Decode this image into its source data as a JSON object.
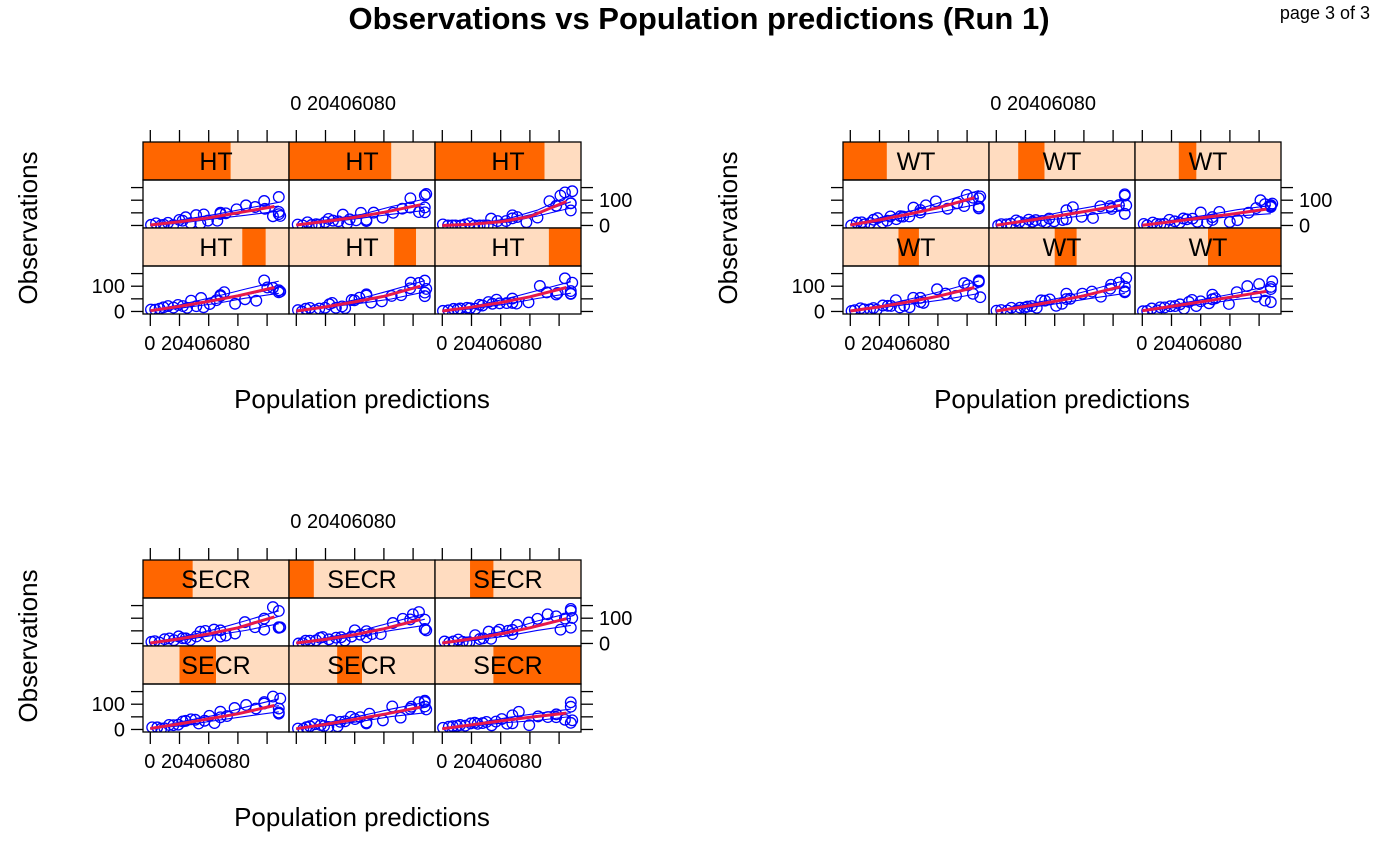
{
  "title": "Observations vs Population predictions (Run 1)",
  "page_note": "page 3 of 3",
  "colors": {
    "strip_bg": "#FFDCC0",
    "strip_shade": "#FF6600",
    "points": "#0000FF",
    "smooth": "#E6194B",
    "frame": "#000000"
  },
  "chart_data": [
    {
      "type": "scatter",
      "variable": "HT",
      "xlabel": "Population predictions",
      "ylabel": "Observations",
      "x_ticks": [
        "0",
        "20",
        "40",
        "60",
        "80"
      ],
      "x_tick_text": "0 20406080",
      "y_ticks": [
        "0",
        "100"
      ],
      "xlim": [
        -5,
        95
      ],
      "ylim": [
        -10,
        180
      ],
      "layout": {
        "columns": 3,
        "rows": 2
      },
      "panels": [
        {
          "label": "HT",
          "shade_range": [
            0.0,
            0.6
          ],
          "smooth": [
            [
              0,
              2
            ],
            [
              20,
              15
            ],
            [
              40,
              30
            ],
            [
              60,
              50
            ],
            [
              85,
              75
            ]
          ]
        },
        {
          "label": "HT",
          "shade_range": [
            0.0,
            0.7
          ],
          "smooth": [
            [
              0,
              2
            ],
            [
              20,
              16
            ],
            [
              40,
              32
            ],
            [
              60,
              52
            ],
            [
              85,
              82
            ]
          ]
        },
        {
          "label": "HT",
          "shade_range": [
            0.0,
            0.75
          ],
          "smooth": [
            [
              0,
              0
            ],
            [
              20,
              5
            ],
            [
              40,
              15
            ],
            [
              60,
              35
            ],
            [
              85,
              95
            ]
          ]
        },
        {
          "label": "HT",
          "shade_range": [
            0.68,
            0.84
          ],
          "smooth": [
            [
              0,
              3
            ],
            [
              20,
              20
            ],
            [
              40,
              40
            ],
            [
              60,
              62
            ],
            [
              85,
              95
            ]
          ]
        },
        {
          "label": "HT",
          "shade_range": [
            0.72,
            0.87
          ],
          "smooth": [
            [
              0,
              2
            ],
            [
              20,
              18
            ],
            [
              40,
              38
            ],
            [
              60,
              60
            ],
            [
              85,
              100
            ]
          ]
        },
        {
          "label": "HT",
          "shade_range": [
            0.78,
            1.0
          ],
          "smooth": [
            [
              0,
              2
            ],
            [
              20,
              17
            ],
            [
              40,
              35
            ],
            [
              60,
              58
            ],
            [
              85,
              95
            ]
          ]
        }
      ]
    },
    {
      "type": "scatter",
      "variable": "WT",
      "xlabel": "Population predictions",
      "ylabel": "Observations",
      "x_ticks": [
        "0",
        "20",
        "40",
        "60",
        "80"
      ],
      "x_tick_text": "0 20406080",
      "y_ticks": [
        "0",
        "100"
      ],
      "xlim": [
        -5,
        95
      ],
      "ylim": [
        -10,
        180
      ],
      "layout": {
        "columns": 3,
        "rows": 2
      },
      "panels": [
        {
          "label": "WT",
          "shade_range": [
            0.0,
            0.3
          ],
          "smooth": [
            [
              0,
              2
            ],
            [
              20,
              22
            ],
            [
              40,
              45
            ],
            [
              60,
              70
            ],
            [
              85,
              110
            ]
          ]
        },
        {
          "label": "WT",
          "shade_range": [
            0.2,
            0.38
          ],
          "smooth": [
            [
              0,
              1
            ],
            [
              20,
              18
            ],
            [
              40,
              36
            ],
            [
              60,
              55
            ],
            [
              85,
              80
            ]
          ]
        },
        {
          "label": "WT",
          "shade_range": [
            0.3,
            0.42
          ],
          "smooth": [
            [
              0,
              1
            ],
            [
              20,
              15
            ],
            [
              40,
              30
            ],
            [
              60,
              44
            ],
            [
              85,
              65
            ]
          ]
        },
        {
          "label": "WT",
          "shade_range": [
            0.38,
            0.52
          ],
          "smooth": [
            [
              0,
              2
            ],
            [
              20,
              18
            ],
            [
              40,
              38
            ],
            [
              60,
              60
            ],
            [
              85,
              95
            ]
          ]
        },
        {
          "label": "WT",
          "shade_range": [
            0.45,
            0.6
          ],
          "smooth": [
            [
              0,
              2
            ],
            [
              20,
              20
            ],
            [
              40,
              40
            ],
            [
              60,
              62
            ],
            [
              85,
              98
            ]
          ]
        },
        {
          "label": "WT",
          "shade_range": [
            0.5,
            1.0
          ],
          "smooth": [
            [
              0,
              3
            ],
            [
              20,
              20
            ],
            [
              40,
              38
            ],
            [
              60,
              56
            ],
            [
              85,
              80
            ]
          ]
        }
      ]
    },
    {
      "type": "scatter",
      "variable": "SECR",
      "xlabel": "Population predictions",
      "ylabel": "Observations",
      "x_ticks": [
        "0",
        "20",
        "40",
        "60",
        "80"
      ],
      "x_tick_text": "0 20406080",
      "y_ticks": [
        "0",
        "100"
      ],
      "xlim": [
        -5,
        95
      ],
      "ylim": [
        -10,
        180
      ],
      "layout": {
        "columns": 3,
        "rows": 2
      },
      "panels": [
        {
          "label": "SECR",
          "shade_range": [
            0.0,
            0.34
          ],
          "smooth": [
            [
              0,
              2
            ],
            [
              20,
              18
            ],
            [
              40,
              38
            ],
            [
              60,
              62
            ],
            [
              85,
              105
            ]
          ]
        },
        {
          "label": "SECR",
          "shade_range": [
            0.0,
            0.17
          ],
          "smooth": [
            [
              0,
              2
            ],
            [
              20,
              16
            ],
            [
              40,
              35
            ],
            [
              60,
              58
            ],
            [
              85,
              95
            ]
          ]
        },
        {
          "label": "SECR",
          "shade_range": [
            0.24,
            0.4
          ],
          "smooth": [
            [
              0,
              2
            ],
            [
              20,
              18
            ],
            [
              40,
              38
            ],
            [
              60,
              62
            ],
            [
              85,
              98
            ]
          ]
        },
        {
          "label": "SECR",
          "shade_range": [
            0.25,
            0.5
          ],
          "smooth": [
            [
              0,
              4
            ],
            [
              20,
              22
            ],
            [
              40,
              42
            ],
            [
              60,
              62
            ],
            [
              85,
              95
            ]
          ]
        },
        {
          "label": "SECR",
          "shade_range": [
            0.33,
            0.5
          ],
          "smooth": [
            [
              0,
              3
            ],
            [
              20,
              20
            ],
            [
              40,
              40
            ],
            [
              60,
              60
            ],
            [
              85,
              88
            ]
          ]
        },
        {
          "label": "SECR",
          "shade_range": [
            0.4,
            1.0
          ],
          "smooth": [
            [
              0,
              3
            ],
            [
              20,
              18
            ],
            [
              40,
              34
            ],
            [
              60,
              48
            ],
            [
              85,
              65
            ]
          ]
        }
      ]
    }
  ]
}
